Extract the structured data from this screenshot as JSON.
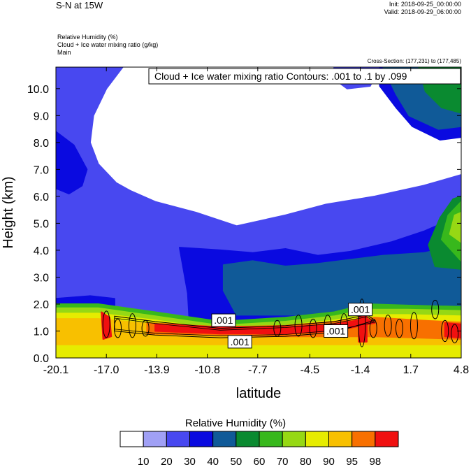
{
  "header": {
    "title": "S-N at 15W",
    "init": "Init: 2018-09-25_00:00:00",
    "valid": "Valid: 2018-09-29_06:00:00"
  },
  "fields": {
    "line1": "Relative Humidity   (%)",
    "line2": "Cloud + Ice water mixing ratio   (g/kg)",
    "line3": "Main"
  },
  "cross_section": "Cross-Section: (177,231) to (177,485)",
  "contour_info": "Cloud + Ice water mixing ratio Contours: .001 to .1 by .099",
  "labelbar": {
    "title": "Relative Humidity  (%)",
    "levels": [
      "10",
      "20",
      "30",
      "40",
      "50",
      "60",
      "70",
      "80",
      "90",
      "95",
      "98"
    ],
    "colors": [
      "#ffffff",
      "#a0a0f5",
      "#4848f0",
      "#0a0ae0",
      "#105a98",
      "#0a8a30",
      "#38b81c",
      "#96d814",
      "#e6ec00",
      "#f8c000",
      "#f87000",
      "#f01010"
    ]
  },
  "contour_labels": [
    {
      "text": ".001",
      "x": -9.8,
      "y": 1.4
    },
    {
      "text": ".001",
      "x": -8.8,
      "y": 0.6
    },
    {
      "text": ".001",
      "x": -1.4,
      "y": 1.8
    },
    {
      "text": ".001",
      "x": -2.9,
      "y": 1.0
    }
  ],
  "chart_data": {
    "type": "heatmap",
    "xlabel": "latitude",
    "ylabel": "Height (km)",
    "xlim": [
      -20.1,
      4.8
    ],
    "ylim": [
      0.0,
      10.8
    ],
    "xticks": [
      "-20.1",
      "-17.0",
      "-13.9",
      "-10.8",
      "-7.7",
      "-4.5",
      "-1.4",
      "1.7",
      "4.8"
    ],
    "xtick_values": [
      -20.1,
      -17.0,
      -13.9,
      -10.8,
      -7.7,
      -4.5,
      -1.4,
      1.7,
      4.8
    ],
    "yticks": [
      "0.0",
      "1.0",
      "2.0",
      "3.0",
      "4.0",
      "5.0",
      "6.0",
      "7.0",
      "8.0",
      "9.0",
      "10.0"
    ],
    "ytick_values": [
      0,
      1,
      2,
      3,
      4,
      5,
      6,
      7,
      8,
      9,
      10
    ],
    "relative_humidity_regions": [
      {
        "level": 20,
        "points": [
          [
            -20.1,
            10.8
          ],
          [
            -16.0,
            10.8
          ],
          [
            -17.0,
            10.0
          ],
          [
            -17.8,
            9.0
          ],
          [
            -18.0,
            8.0
          ],
          [
            -17.5,
            7.2
          ],
          [
            -16.4,
            6.5
          ],
          [
            -15.5,
            6.2
          ],
          [
            -14.0,
            5.8
          ],
          [
            -11.5,
            5.4
          ],
          [
            -9.0,
            4.9
          ],
          [
            -6.0,
            5.3
          ],
          [
            -3.5,
            5.7
          ],
          [
            -0.5,
            6.0
          ],
          [
            2.5,
            6.4
          ],
          [
            4.8,
            6.8
          ],
          [
            4.8,
            0.3
          ],
          [
            -20.1,
            0.3
          ]
        ]
      },
      {
        "level": 20,
        "points": [
          [
            -3.0,
            10.8
          ],
          [
            -0.2,
            10.8
          ],
          [
            -0.8,
            10.1
          ],
          [
            -2.2,
            10.0
          ],
          [
            -3.1,
            10.4
          ]
        ]
      },
      {
        "level": 30,
        "points": [
          [
            -20.1,
            8.4
          ],
          [
            -19.0,
            7.9
          ],
          [
            -18.2,
            7.0
          ],
          [
            -18.5,
            6.4
          ],
          [
            -19.3,
            6.1
          ],
          [
            -20.1,
            6.3
          ]
        ]
      },
      {
        "level": 30,
        "points": [
          [
            -12.5,
            4.1
          ],
          [
            -10.0,
            4.0
          ],
          [
            -8.0,
            3.9
          ],
          [
            -6.0,
            4.05
          ],
          [
            -4.0,
            3.8
          ],
          [
            -2.0,
            3.95
          ],
          [
            0.5,
            4.3
          ],
          [
            2.5,
            4.7
          ],
          [
            4.8,
            5.3
          ],
          [
            4.8,
            0.3
          ],
          [
            -11.8,
            0.3
          ],
          [
            -12.0,
            2.4
          ]
        ]
      },
      {
        "level": 30,
        "points": [
          [
            -20.1,
            2.2
          ],
          [
            -18.0,
            2.3
          ],
          [
            -16.5,
            2.2
          ],
          [
            -16.5,
            0.3
          ],
          [
            -20.1,
            0.3
          ]
        ]
      },
      {
        "level": 30,
        "points": [
          [
            -0.2,
            10.8
          ],
          [
            4.8,
            10.8
          ],
          [
            4.8,
            8.2
          ],
          [
            3.5,
            8.1
          ],
          [
            1.8,
            8.6
          ],
          [
            0.8,
            9.3
          ],
          [
            -0.2,
            10.1
          ]
        ]
      },
      {
        "level": 40,
        "points": [
          [
            -9.8,
            3.45
          ],
          [
            -8.0,
            3.6
          ],
          [
            -6.0,
            3.4
          ],
          [
            -4.0,
            3.5
          ],
          [
            -2.0,
            3.65
          ],
          [
            0.0,
            3.8
          ],
          [
            2.5,
            3.9
          ],
          [
            4.8,
            4.2
          ],
          [
            4.8,
            1.6
          ],
          [
            -9.0,
            1.6
          ],
          [
            -9.8,
            2.5
          ]
        ]
      },
      {
        "level": 40,
        "points": [
          [
            0.0,
            10.8
          ],
          [
            4.8,
            10.8
          ],
          [
            4.8,
            8.6
          ],
          [
            3.4,
            8.5
          ],
          [
            1.6,
            9.0
          ],
          [
            0.8,
            9.8
          ]
        ]
      },
      {
        "level": 50,
        "points": [
          [
            2.2,
            10.8
          ],
          [
            4.8,
            10.8
          ],
          [
            4.8,
            9.1
          ],
          [
            3.6,
            9.3
          ],
          [
            2.6,
            9.9
          ]
        ]
      },
      {
        "level": 50,
        "points": [
          [
            2.8,
            4.2
          ],
          [
            3.5,
            5.2
          ],
          [
            4.3,
            5.9
          ],
          [
            4.8,
            6.0
          ],
          [
            4.8,
            3.3
          ],
          [
            3.2,
            3.4
          ]
        ]
      },
      {
        "level": 60,
        "points": [
          [
            3.6,
            4.4
          ],
          [
            4.0,
            5.3
          ],
          [
            4.8,
            5.8
          ],
          [
            4.8,
            3.6
          ]
        ]
      },
      {
        "level": 70,
        "points": [
          [
            4.1,
            4.6
          ],
          [
            4.4,
            5.3
          ],
          [
            4.8,
            5.4
          ],
          [
            4.8,
            4.3
          ]
        ]
      },
      {
        "level": 60,
        "points": [
          [
            -20.1,
            2.0
          ],
          [
            -17.5,
            2.0
          ],
          [
            -14.0,
            1.7
          ],
          [
            -10.0,
            1.35
          ],
          [
            -6.0,
            1.5
          ],
          [
            -3.0,
            1.7
          ],
          [
            -1.0,
            2.0
          ],
          [
            1.5,
            1.95
          ],
          [
            4.8,
            1.9
          ],
          [
            4.8,
            0
          ],
          [
            -20.1,
            0
          ]
        ]
      },
      {
        "level": 70,
        "points": [
          [
            -20.1,
            1.85
          ],
          [
            -17.5,
            1.85
          ],
          [
            -14.0,
            1.55
          ],
          [
            -10.0,
            1.2
          ],
          [
            -6.0,
            1.35
          ],
          [
            -3.0,
            1.55
          ],
          [
            -1.0,
            1.8
          ],
          [
            1.5,
            1.8
          ],
          [
            4.8,
            1.75
          ],
          [
            4.8,
            0
          ],
          [
            -20.1,
            0
          ]
        ]
      },
      {
        "level": 80,
        "points": [
          [
            -20.1,
            1.65
          ],
          [
            -17.5,
            1.65
          ],
          [
            -14.0,
            1.4
          ],
          [
            -10.0,
            1.05
          ],
          [
            -6.0,
            1.2
          ],
          [
            -3.0,
            1.4
          ],
          [
            -1.0,
            1.6
          ],
          [
            1.5,
            1.6
          ],
          [
            4.8,
            1.55
          ],
          [
            4.8,
            0
          ],
          [
            -20.1,
            0
          ]
        ]
      },
      {
        "level": 90,
        "points": [
          [
            -20.1,
            1.45
          ],
          [
            -17.5,
            1.45
          ],
          [
            -14.0,
            1.25
          ],
          [
            -10.0,
            0.95
          ],
          [
            -6.0,
            1.05
          ],
          [
            -3.0,
            1.25
          ],
          [
            -1.0,
            1.4
          ],
          [
            1.5,
            1.4
          ],
          [
            4.8,
            1.35
          ],
          [
            4.8,
            0.5
          ],
          [
            -20.1,
            0.5
          ]
        ]
      },
      {
        "level": 95,
        "points": [
          [
            -14.5,
            1.3
          ],
          [
            -10.0,
            1.15
          ],
          [
            -6.0,
            1.2
          ],
          [
            -3.0,
            1.35
          ],
          [
            -0.5,
            1.5
          ],
          [
            4.8,
            1.3
          ],
          [
            4.8,
            0.7
          ],
          [
            -0.5,
            0.8
          ],
          [
            -6.0,
            0.8
          ],
          [
            -10.0,
            0.85
          ],
          [
            -14.5,
            0.9
          ]
        ]
      },
      {
        "level": 98,
        "points": [
          [
            -14.0,
            1.25
          ],
          [
            -10.0,
            1.15
          ],
          [
            -6.0,
            1.15
          ],
          [
            -3.0,
            1.25
          ],
          [
            -1.0,
            1.45
          ],
          [
            -0.5,
            1.3
          ],
          [
            -3.0,
            1.0
          ],
          [
            -6.0,
            0.9
          ],
          [
            -10.0,
            0.9
          ],
          [
            -14.0,
            1.0
          ]
        ]
      },
      {
        "level": 98,
        "points": [
          [
            -17.3,
            1.7
          ],
          [
            -16.8,
            1.5
          ],
          [
            -16.7,
            0.8
          ],
          [
            -17.2,
            0.7
          ]
        ]
      },
      {
        "level": 98,
        "points": [
          [
            -1.5,
            1.9
          ],
          [
            -1.0,
            1.8
          ],
          [
            -1.0,
            0.6
          ],
          [
            -1.5,
            0.6
          ]
        ]
      },
      {
        "level": 98,
        "points": [
          [
            3.8,
            1.3
          ],
          [
            4.8,
            1.25
          ],
          [
            4.8,
            0.75
          ],
          [
            3.8,
            0.8
          ]
        ]
      }
    ],
    "cloud_ice_contour_value": 0.001
  }
}
